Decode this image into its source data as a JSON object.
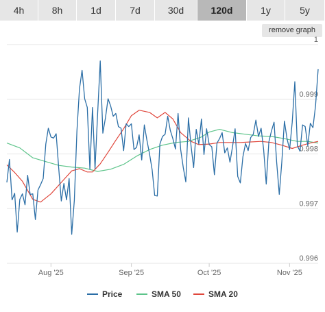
{
  "tabs": [
    {
      "label": "4h",
      "active": false
    },
    {
      "label": "8h",
      "active": false
    },
    {
      "label": "1d",
      "active": false
    },
    {
      "label": "7d",
      "active": false
    },
    {
      "label": "30d",
      "active": false
    },
    {
      "label": "120d",
      "active": true
    },
    {
      "label": "1y",
      "active": false
    },
    {
      "label": "5y",
      "active": false
    }
  ],
  "remove_graph_label": "remove graph",
  "colors": {
    "price": "#2b6ea6",
    "sma50": "#5dc48a",
    "sma20": "#e0473c"
  },
  "chart_data": {
    "type": "line",
    "title": "",
    "xlabel": "",
    "ylabel": "",
    "x_range": [
      "2025-07-15",
      "2025-11-12"
    ],
    "ylim": [
      0.996,
      1.0
    ],
    "y_ticks": [
      1,
      0.999,
      0.998,
      0.997,
      0.996
    ],
    "y_tick_labels": [
      "1",
      "0.999",
      "0.998",
      "0.997",
      "0.996"
    ],
    "x_ticks": [
      {
        "date": "2025-08-01",
        "label": "Aug '25"
      },
      {
        "date": "2025-09-01",
        "label": "Sep '25"
      },
      {
        "date": "2025-10-01",
        "label": "Oct '25"
      },
      {
        "date": "2025-11-01",
        "label": "Nov '25"
      }
    ],
    "grid": true,
    "legend": "bottom",
    "series": [
      {
        "name": "Price",
        "color": "#2b6ea6",
        "points": [
          [
            "2025-07-15",
            0.99748
          ],
          [
            "2025-07-16",
            0.9979
          ],
          [
            "2025-07-17",
            0.99716
          ],
          [
            "2025-07-18",
            0.99728
          ],
          [
            "2025-07-19",
            0.99657
          ],
          [
            "2025-07-20",
            0.99717
          ],
          [
            "2025-07-21",
            0.99727
          ],
          [
            "2025-07-22",
            0.99707
          ],
          [
            "2025-07-23",
            0.99761
          ],
          [
            "2025-07-24",
            0.99726
          ],
          [
            "2025-07-25",
            0.99727
          ],
          [
            "2025-07-26",
            0.9968
          ],
          [
            "2025-07-27",
            0.99734
          ],
          [
            "2025-07-28",
            0.99744
          ],
          [
            "2025-07-29",
            0.99755
          ],
          [
            "2025-07-30",
            0.99818
          ],
          [
            "2025-07-31",
            0.99847
          ],
          [
            "2025-08-01",
            0.99831
          ],
          [
            "2025-08-02",
            0.99829
          ],
          [
            "2025-08-03",
            0.99837
          ],
          [
            "2025-08-04",
            0.99773
          ],
          [
            "2025-08-05",
            0.99714
          ],
          [
            "2025-08-06",
            0.99746
          ],
          [
            "2025-08-07",
            0.99716
          ],
          [
            "2025-08-08",
            0.99755
          ],
          [
            "2025-08-09",
            0.99653
          ],
          [
            "2025-08-10",
            0.99715
          ],
          [
            "2025-08-11",
            0.99842
          ],
          [
            "2025-08-12",
            0.99919
          ],
          [
            "2025-08-13",
            0.99953
          ],
          [
            "2025-08-14",
            0.99901
          ],
          [
            "2025-08-15",
            0.99885
          ],
          [
            "2025-08-16",
            0.99772
          ],
          [
            "2025-08-17",
            0.99885
          ],
          [
            "2025-08-18",
            0.99773
          ],
          [
            "2025-08-19",
            0.99874
          ],
          [
            "2025-08-20",
            0.9997
          ],
          [
            "2025-08-21",
            0.99838
          ],
          [
            "2025-08-22",
            0.99866
          ],
          [
            "2025-08-23",
            0.99901
          ],
          [
            "2025-08-24",
            0.99888
          ],
          [
            "2025-08-25",
            0.99869
          ],
          [
            "2025-08-26",
            0.99874
          ],
          [
            "2025-08-27",
            0.9985
          ],
          [
            "2025-08-28",
            0.99847
          ],
          [
            "2025-08-29",
            0.99806
          ],
          [
            "2025-08-30",
            0.99855
          ],
          [
            "2025-08-31",
            0.9985
          ],
          [
            "2025-09-01",
            0.99855
          ],
          [
            "2025-09-02",
            0.99808
          ],
          [
            "2025-09-03",
            0.99812
          ],
          [
            "2025-09-04",
            0.99835
          ],
          [
            "2025-09-05",
            0.99789
          ],
          [
            "2025-09-06",
            0.99853
          ],
          [
            "2025-09-07",
            0.99825
          ],
          [
            "2025-09-08",
            0.998
          ],
          [
            "2025-09-09",
            0.99771
          ],
          [
            "2025-09-10",
            0.99724
          ],
          [
            "2025-09-11",
            0.99723
          ],
          [
            "2025-09-12",
            0.99818
          ],
          [
            "2025-09-13",
            0.99832
          ],
          [
            "2025-09-14",
            0.99836
          ],
          [
            "2025-09-15",
            0.99869
          ],
          [
            "2025-09-16",
            0.99843
          ],
          [
            "2025-09-17",
            0.99828
          ],
          [
            "2025-09-18",
            0.99809
          ],
          [
            "2025-09-19",
            0.99874
          ],
          [
            "2025-09-20",
            0.99808
          ],
          [
            "2025-09-21",
            0.99775
          ],
          [
            "2025-09-22",
            0.99749
          ],
          [
            "2025-09-23",
            0.99866
          ],
          [
            "2025-09-24",
            0.99815
          ],
          [
            "2025-09-25",
            0.99775
          ],
          [
            "2025-09-26",
            0.99845
          ],
          [
            "2025-09-27",
            0.99818
          ],
          [
            "2025-09-28",
            0.99864
          ],
          [
            "2025-09-29",
            0.99799
          ],
          [
            "2025-09-30",
            0.99846
          ],
          [
            "2025-10-01",
            0.99817
          ],
          [
            "2025-10-02",
            0.99813
          ],
          [
            "2025-10-03",
            0.99762
          ],
          [
            "2025-10-04",
            0.9982
          ],
          [
            "2025-10-05",
            0.99828
          ],
          [
            "2025-10-06",
            0.99839
          ],
          [
            "2025-10-07",
            0.99802
          ],
          [
            "2025-10-08",
            0.99811
          ],
          [
            "2025-10-09",
            0.99785
          ],
          [
            "2025-10-10",
            0.99813
          ],
          [
            "2025-10-11",
            0.99846
          ],
          [
            "2025-10-12",
            0.99759
          ],
          [
            "2025-10-13",
            0.99747
          ],
          [
            "2025-10-14",
            0.99795
          ],
          [
            "2025-10-15",
            0.99819
          ],
          [
            "2025-10-16",
            0.99806
          ],
          [
            "2025-10-17",
            0.9983
          ],
          [
            "2025-10-18",
            0.99836
          ],
          [
            "2025-10-19",
            0.99862
          ],
          [
            "2025-10-20",
            0.99832
          ],
          [
            "2025-10-21",
            0.99847
          ],
          [
            "2025-10-22",
            0.99808
          ],
          [
            "2025-10-23",
            0.99745
          ],
          [
            "2025-10-24",
            0.99822
          ],
          [
            "2025-10-25",
            0.99842
          ],
          [
            "2025-10-26",
            0.99858
          ],
          [
            "2025-10-27",
            0.99785
          ],
          [
            "2025-10-28",
            0.99726
          ],
          [
            "2025-10-29",
            0.99785
          ],
          [
            "2025-10-30",
            0.9986
          ],
          [
            "2025-10-31",
            0.99828
          ],
          [
            "2025-11-01",
            0.99808
          ],
          [
            "2025-11-02",
            0.99858
          ],
          [
            "2025-11-03",
            0.99932
          ],
          [
            "2025-11-04",
            0.99815
          ],
          [
            "2025-11-05",
            0.99805
          ],
          [
            "2025-11-06",
            0.99853
          ],
          [
            "2025-11-07",
            0.9985
          ],
          [
            "2025-11-08",
            0.99815
          ],
          [
            "2025-11-09",
            0.99856
          ],
          [
            "2025-11-10",
            0.99848
          ],
          [
            "2025-11-11",
            0.99888
          ],
          [
            "2025-11-12",
            0.99955
          ]
        ]
      },
      {
        "name": "SMA 50",
        "color": "#5dc48a",
        "points": [
          [
            "2025-07-15",
            0.9982
          ],
          [
            "2025-07-20",
            0.99811
          ],
          [
            "2025-07-25",
            0.99793
          ],
          [
            "2025-07-30",
            0.99786
          ],
          [
            "2025-08-04",
            0.99779
          ],
          [
            "2025-08-09",
            0.99776
          ],
          [
            "2025-08-14",
            0.99774
          ],
          [
            "2025-08-19",
            0.99768
          ],
          [
            "2025-08-24",
            0.99772
          ],
          [
            "2025-08-29",
            0.99781
          ],
          [
            "2025-09-03",
            0.99796
          ],
          [
            "2025-09-08",
            0.99808
          ],
          [
            "2025-09-13",
            0.99816
          ],
          [
            "2025-09-18",
            0.99821
          ],
          [
            "2025-09-23",
            0.99823
          ],
          [
            "2025-09-28",
            0.99831
          ],
          [
            "2025-10-01",
            0.9984
          ],
          [
            "2025-10-05",
            0.99845
          ],
          [
            "2025-10-10",
            0.99839
          ],
          [
            "2025-10-15",
            0.99836
          ],
          [
            "2025-10-20",
            0.99833
          ],
          [
            "2025-10-25",
            0.99832
          ],
          [
            "2025-10-30",
            0.99828
          ],
          [
            "2025-11-04",
            0.99823
          ],
          [
            "2025-11-08",
            0.99823
          ],
          [
            "2025-11-12",
            0.9982
          ]
        ]
      },
      {
        "name": "SMA 20",
        "color": "#e0473c",
        "points": [
          [
            "2025-07-15",
            0.9978
          ],
          [
            "2025-07-18",
            0.99766
          ],
          [
            "2025-07-21",
            0.9975
          ],
          [
            "2025-07-25",
            0.99717
          ],
          [
            "2025-07-28",
            0.99712
          ],
          [
            "2025-08-01",
            0.99727
          ],
          [
            "2025-08-05",
            0.99748
          ],
          [
            "2025-08-09",
            0.99769
          ],
          [
            "2025-08-12",
            0.99773
          ],
          [
            "2025-08-15",
            0.99767
          ],
          [
            "2025-08-17",
            0.99767
          ],
          [
            "2025-08-20",
            0.99782
          ],
          [
            "2025-08-23",
            0.99803
          ],
          [
            "2025-08-26",
            0.99825
          ],
          [
            "2025-08-29",
            0.99846
          ],
          [
            "2025-09-01",
            0.9987
          ],
          [
            "2025-09-04",
            0.9988
          ],
          [
            "2025-09-08",
            0.99876
          ],
          [
            "2025-09-11",
            0.99866
          ],
          [
            "2025-09-14",
            0.99876
          ],
          [
            "2025-09-17",
            0.99864
          ],
          [
            "2025-09-20",
            0.99839
          ],
          [
            "2025-09-24",
            0.99823
          ],
          [
            "2025-09-27",
            0.99817
          ],
          [
            "2025-10-01",
            0.99818
          ],
          [
            "2025-10-05",
            0.99821
          ],
          [
            "2025-10-09",
            0.99821
          ],
          [
            "2025-10-13",
            0.99821
          ],
          [
            "2025-10-17",
            0.99822
          ],
          [
            "2025-10-21",
            0.99823
          ],
          [
            "2025-10-25",
            0.99821
          ],
          [
            "2025-10-29",
            0.99816
          ],
          [
            "2025-11-02",
            0.9981
          ],
          [
            "2025-11-06",
            0.99816
          ],
          [
            "2025-11-09",
            0.9982
          ],
          [
            "2025-11-12",
            0.99823
          ]
        ]
      }
    ]
  }
}
